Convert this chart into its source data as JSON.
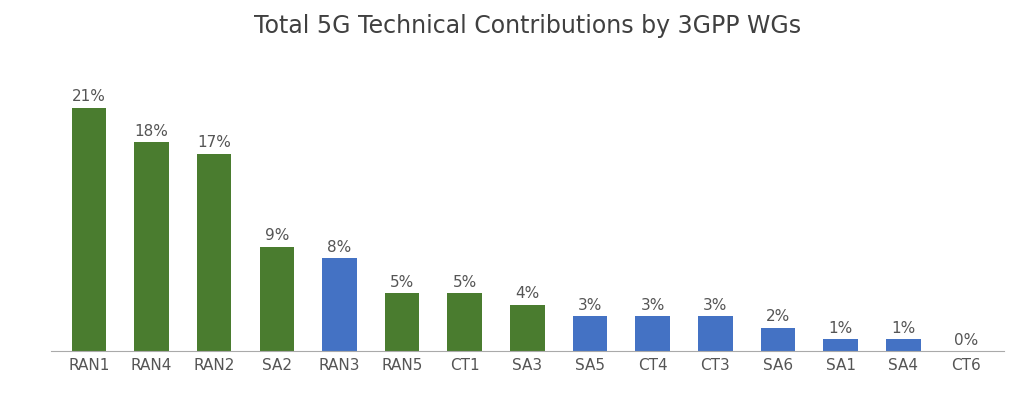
{
  "categories": [
    "RAN1",
    "RAN4",
    "RAN2",
    "SA2",
    "RAN3",
    "RAN5",
    "CT1",
    "SA3",
    "SA5",
    "CT4",
    "CT3",
    "SA6",
    "SA1",
    "SA4",
    "CT6"
  ],
  "values": [
    21,
    18,
    17,
    9,
    8,
    5,
    5,
    4,
    3,
    3,
    3,
    2,
    1,
    1,
    0
  ],
  "labels": [
    "21%",
    "18%",
    "17%",
    "9%",
    "8%",
    "5%",
    "5%",
    "4%",
    "3%",
    "3%",
    "3%",
    "2%",
    "1%",
    "1%",
    "0%"
  ],
  "colors": [
    "#4a7c2f",
    "#4a7c2f",
    "#4a7c2f",
    "#4a7c2f",
    "#4472c4",
    "#4a7c2f",
    "#4a7c2f",
    "#4a7c2f",
    "#4472c4",
    "#4472c4",
    "#4472c4",
    "#4472c4",
    "#4472c4",
    "#4472c4",
    "#4472c4"
  ],
  "title": "Total 5G Technical Contributions by 3GPP WGs",
  "title_fontsize": 17,
  "label_fontsize": 11,
  "tick_fontsize": 11,
  "background_color": "#ffffff",
  "ylim": [
    0,
    26
  ],
  "bar_width": 0.55
}
